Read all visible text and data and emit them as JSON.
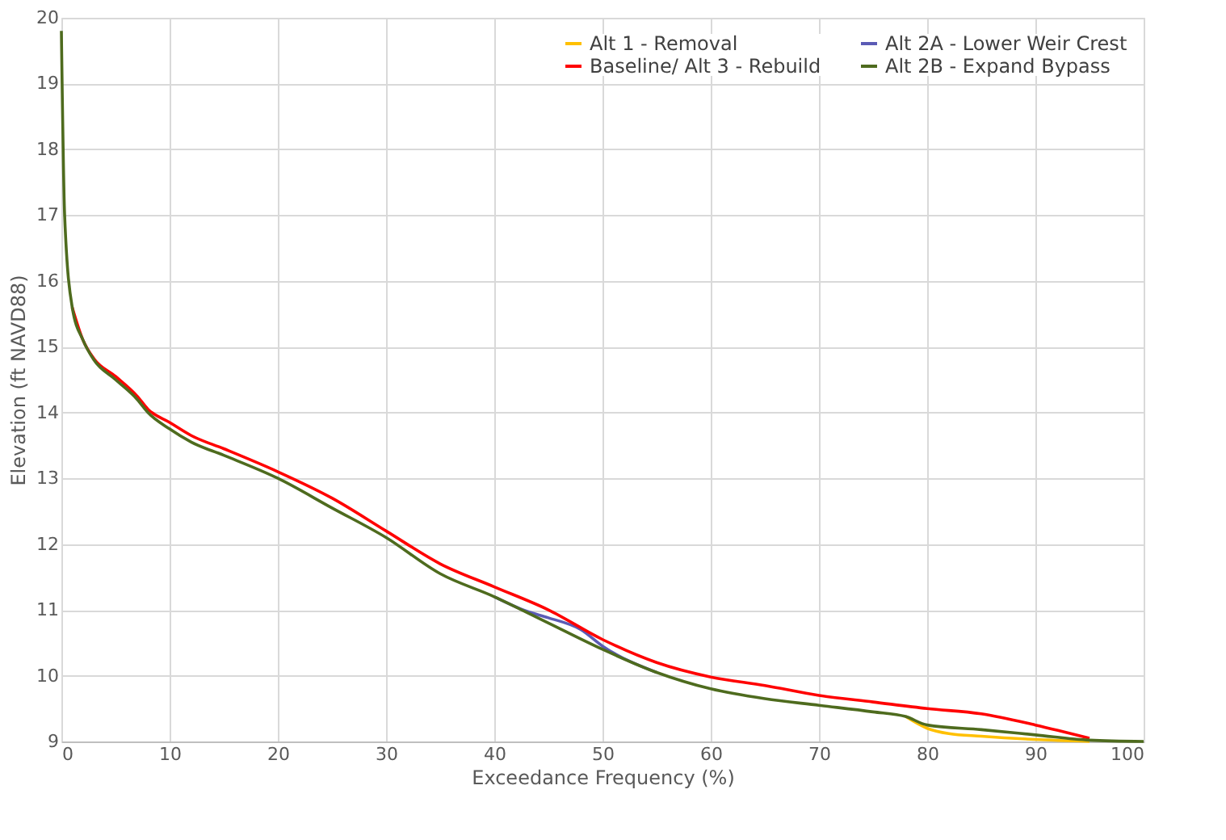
{
  "chart_data": {
    "type": "line",
    "xlabel": "Exceedance Frequency (%)",
    "ylabel": "Elevation (ft NAVD88)",
    "xlim": [
      0,
      100
    ],
    "xticks": [
      0,
      10,
      20,
      30,
      40,
      50,
      60,
      70,
      80,
      90,
      100
    ],
    "ylim": [
      9,
      20
    ],
    "yticks": [
      9,
      10,
      11,
      12,
      13,
      14,
      15,
      16,
      17,
      18,
      19,
      20
    ],
    "grid": true,
    "legend": "top right",
    "line_style": "solid",
    "marker": "none",
    "series": [
      {
        "name": "Alt 1 - Removal",
        "color": "#ffc000",
        "x": [
          78,
          80,
          82,
          85,
          90,
          95
        ],
        "values": [
          9.38,
          9.2,
          9.12,
          9.08,
          9.03,
          9.0
        ]
      },
      {
        "name": "Alt 2A - Lower Weir Crest",
        "color": "#5b5bb5",
        "x": [
          40,
          43,
          45,
          48,
          50,
          55
        ],
        "values": [
          11.2,
          10.98,
          10.88,
          10.7,
          10.45,
          10.05
        ]
      },
      {
        "name": "Baseline/ Alt 3 - Rebuild",
        "color": "#ff0000",
        "x": [
          1,
          2,
          3,
          5,
          7,
          8,
          10,
          12,
          15,
          20,
          25,
          30,
          35,
          40,
          45,
          50,
          55,
          60,
          65,
          70,
          75,
          80,
          85,
          90,
          95
        ],
        "values": [
          15.6,
          15.1,
          14.82,
          14.55,
          14.25,
          14.05,
          13.85,
          13.65,
          13.45,
          13.1,
          12.7,
          12.2,
          11.7,
          11.35,
          11.0,
          10.55,
          10.2,
          9.98,
          9.85,
          9.7,
          9.6,
          9.5,
          9.42,
          9.25,
          9.05
        ]
      },
      {
        "name": "Alt 2B - Expand Bypass",
        "color": "#4e6b1e",
        "x": [
          0,
          0.3,
          1,
          2,
          3,
          5,
          7,
          8,
          10,
          12,
          15,
          20,
          25,
          30,
          35,
          40,
          45,
          50,
          55,
          60,
          65,
          70,
          75,
          78,
          80,
          85,
          90,
          95,
          100
        ],
        "values": [
          19.8,
          17,
          15.6,
          15.1,
          14.8,
          14.5,
          14.2,
          14.0,
          13.75,
          13.55,
          13.35,
          13.0,
          12.55,
          12.1,
          11.55,
          11.2,
          10.8,
          10.4,
          10.05,
          9.8,
          9.65,
          9.55,
          9.45,
          9.38,
          9.25,
          9.18,
          9.1,
          9.02,
          9.0
        ]
      }
    ]
  }
}
